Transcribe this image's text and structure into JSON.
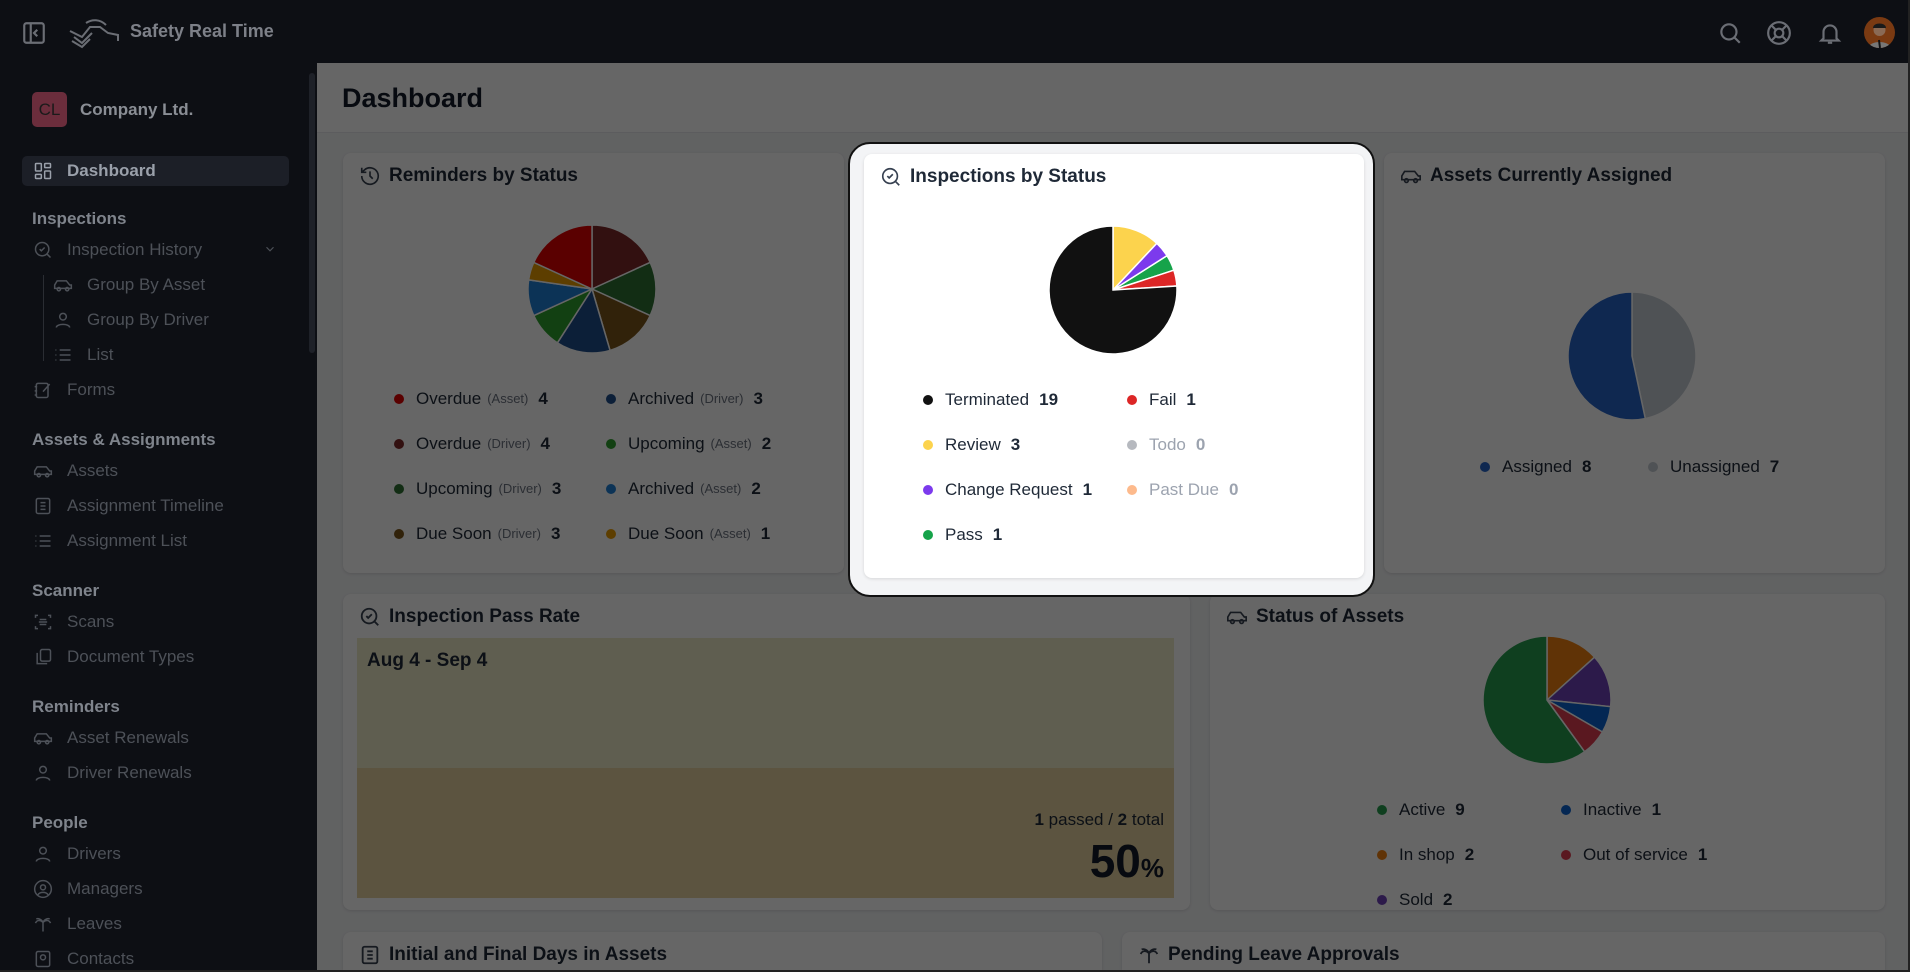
{
  "app": {
    "title": "Safety Real Time"
  },
  "header": {
    "icons": [
      "sidebar-toggle-icon",
      "logo",
      "search-icon",
      "help-lifebuoy-icon",
      "bell-icon",
      "avatar"
    ]
  },
  "sidebar": {
    "company_initials": "CL",
    "company_name": "Company Ltd.",
    "items": [
      {
        "type": "item",
        "label": "Dashboard",
        "icon": "dashboard",
        "active": true
      },
      {
        "type": "head",
        "label": "Inspections"
      },
      {
        "type": "item",
        "label": "Inspection History",
        "icon": "search-check",
        "expandable": true
      },
      {
        "type": "sub",
        "label": "Group By Asset",
        "icon": "car"
      },
      {
        "type": "sub",
        "label": "Group By Driver",
        "icon": "user"
      },
      {
        "type": "sub",
        "label": "List",
        "icon": "list"
      },
      {
        "type": "item",
        "label": "Forms",
        "icon": "forms"
      },
      {
        "type": "head",
        "label": "Assets & Assignments"
      },
      {
        "type": "item",
        "label": "Assets",
        "icon": "car"
      },
      {
        "type": "item",
        "label": "Assignment Timeline",
        "icon": "doc"
      },
      {
        "type": "item",
        "label": "Assignment List",
        "icon": "list"
      },
      {
        "type": "head",
        "label": "Scanner"
      },
      {
        "type": "item",
        "label": "Scans",
        "icon": "scan"
      },
      {
        "type": "item",
        "label": "Document Types",
        "icon": "copy"
      },
      {
        "type": "head",
        "label": "Reminders"
      },
      {
        "type": "item",
        "label": "Asset Renewals",
        "icon": "car"
      },
      {
        "type": "item",
        "label": "Driver Renewals",
        "icon": "user"
      },
      {
        "type": "head",
        "label": "People"
      },
      {
        "type": "item",
        "label": "Drivers",
        "icon": "user"
      },
      {
        "type": "item",
        "label": "Managers",
        "icon": "user-circle"
      },
      {
        "type": "item",
        "label": "Leaves",
        "icon": "palm"
      },
      {
        "type": "item",
        "label": "Contacts",
        "icon": "contact"
      }
    ]
  },
  "main": {
    "page_title": "Dashboard",
    "pass_rate": {
      "title": "Inspection Pass Rate",
      "date_range": "Aug 4 - Sep 4",
      "passed": "1",
      "passed_label": "passed /",
      "total": "2",
      "total_label": "total",
      "percent": "50",
      "percent_sign": "%",
      "fill_fraction": 0.5,
      "colors": {
        "background": "#eeebc9",
        "fill": "#e5d3a0"
      }
    },
    "initial_final": {
      "title": "Initial and Final Days in Assets"
    },
    "pending_leave": {
      "title": "Pending Leave Approvals"
    }
  },
  "chart_data": [
    {
      "id": "reminders",
      "type": "pie",
      "title": "Reminders by Status",
      "icon": "history-icon",
      "legend": [
        {
          "label": "Overdue",
          "qualifier": "(Asset)",
          "value": 4,
          "color": "#e00000"
        },
        {
          "label": "Archived",
          "qualifier": "(Driver)",
          "value": 3,
          "color": "#1e4e8c"
        },
        {
          "label": "Overdue",
          "qualifier": "(Driver)",
          "value": 4,
          "color": "#7d2828"
        },
        {
          "label": "Upcoming",
          "qualifier": "(Asset)",
          "value": 2,
          "color": "#2ea02e"
        },
        {
          "label": "Upcoming",
          "qualifier": "(Driver)",
          "value": 3,
          "color": "#2e7032"
        },
        {
          "label": "Archived",
          "qualifier": "(Asset)",
          "value": 2,
          "color": "#1d7fd6"
        },
        {
          "label": "Due Soon",
          "qualifier": "(Driver)",
          "value": 3,
          "color": "#7a5418"
        },
        {
          "label": "Due Soon",
          "qualifier": "(Asset)",
          "value": 1,
          "color": "#e89a00"
        }
      ],
      "slice_order": [
        2,
        4,
        6,
        1,
        3,
        5,
        7,
        0
      ]
    },
    {
      "id": "inspections",
      "type": "pie",
      "title": "Inspections by Status",
      "icon": "search-check-icon",
      "legend": [
        {
          "label": "Terminated",
          "value": 19,
          "color": "#111111"
        },
        {
          "label": "Fail",
          "value": 1,
          "color": "#dc2626"
        },
        {
          "label": "Review",
          "value": 3,
          "color": "#fcd34d"
        },
        {
          "label": "Todo",
          "value": 0,
          "color": "#b6b9bf"
        },
        {
          "label": "Change Request",
          "value": 1,
          "color": "#7c3aed"
        },
        {
          "label": "Past Due",
          "value": 0,
          "color": "#fdba8c"
        },
        {
          "label": "Pass",
          "value": 1,
          "color": "#16a34a"
        }
      ],
      "slice_order": [
        2,
        4,
        6,
        1,
        0
      ]
    },
    {
      "id": "assets",
      "type": "pie",
      "title": "Assets Currently Assigned",
      "icon": "car-icon",
      "legend": [
        {
          "label": "Assigned",
          "value": 8,
          "color": "#2563c8"
        },
        {
          "label": "Unassigned",
          "value": 7,
          "color": "#c6ccd4"
        }
      ],
      "slice_order": [
        1,
        0
      ]
    },
    {
      "id": "status",
      "type": "pie",
      "title": "Status of Assets",
      "icon": "car-icon",
      "legend": [
        {
          "label": "Active",
          "value": 9,
          "color": "#269e4e"
        },
        {
          "label": "Inactive",
          "value": 1,
          "color": "#0a62d0"
        },
        {
          "label": "In shop",
          "value": 2,
          "color": "#f0800f"
        },
        {
          "label": "Out of service",
          "value": 1,
          "color": "#e03c50"
        },
        {
          "label": "Sold",
          "value": 2,
          "color": "#6e41b9"
        }
      ],
      "slice_order": [
        2,
        4,
        1,
        3,
        0
      ]
    }
  ]
}
